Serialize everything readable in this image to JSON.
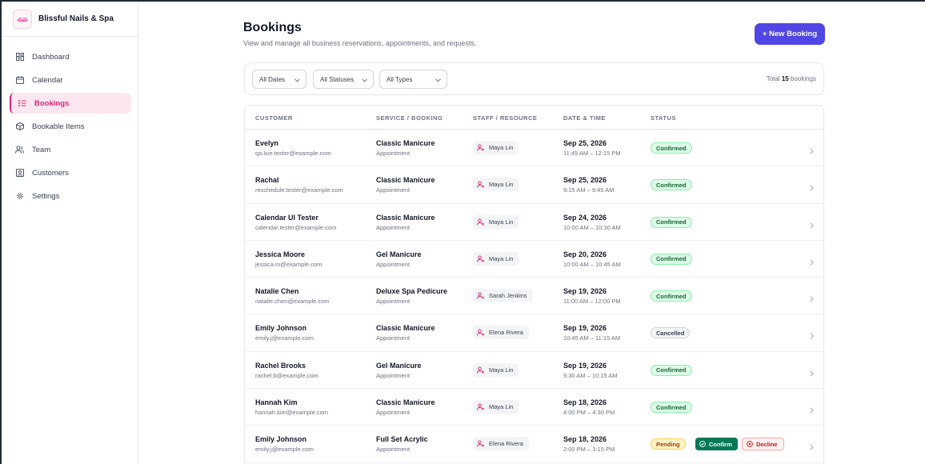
{
  "brand": {
    "name": "Blissful Nails & Spa"
  },
  "nav": [
    {
      "label": "Dashboard",
      "icon": "dashboard-icon"
    },
    {
      "label": "Calendar",
      "icon": "calendar-icon"
    },
    {
      "label": "Bookings",
      "icon": "list-icon",
      "active": true
    },
    {
      "label": "Bookable Items",
      "icon": "package-icon"
    },
    {
      "label": "Team",
      "icon": "team-icon"
    },
    {
      "label": "Customers",
      "icon": "customer-icon"
    },
    {
      "label": "Settings",
      "icon": "gear-icon"
    }
  ],
  "header": {
    "title": "Bookings",
    "subtitle": "View and manage all business reservations, appointments, and requests.",
    "new_label": "+ New Booking"
  },
  "filters": {
    "dates": "All Dates",
    "statuses": "All Statuses",
    "types": "All Types",
    "total_prefix": "Total",
    "total_count": "15",
    "total_suffix": "bookings"
  },
  "columns": [
    "CUSTOMER",
    "SERVICE / BOOKING",
    "STAFF / RESOURCE",
    "DATE & TIME",
    "STATUS"
  ],
  "rows": [
    {
      "name": "Evelyn",
      "email": "qa.live.tester@example.com",
      "service": "Classic Manicure",
      "type": "Appointment",
      "staff": "Maya Lin",
      "date": "Sep 25, 2026",
      "time": "11:45 AM – 12:15 PM",
      "status": "Confirmed"
    },
    {
      "name": "Rachal",
      "email": "reschedule.tester@example.com",
      "service": "Classic Manicure",
      "type": "Appointment",
      "staff": "Maya Lin",
      "date": "Sep 25, 2026",
      "time": "9:15 AM – 9:45 AM",
      "status": "Confirmed"
    },
    {
      "name": "Calendar UI Tester",
      "email": "calendar.tester@example.com",
      "service": "Classic Manicure",
      "type": "Appointment",
      "staff": "Maya Lin",
      "date": "Sep 24, 2026",
      "time": "10:00 AM – 10:30 AM",
      "status": "Confirmed"
    },
    {
      "name": "Jessica Moore",
      "email": "jessica.m@example.com",
      "service": "Gel Manicure",
      "type": "Appointment",
      "staff": "Maya Lin",
      "date": "Sep 20, 2026",
      "time": "10:00 AM – 10:45 AM",
      "status": "Confirmed"
    },
    {
      "name": "Natalie Chen",
      "email": "natalie.chen@example.com",
      "service": "Deluxe Spa Pedicure",
      "type": "Appointment",
      "staff": "Sarah Jenkins",
      "date": "Sep 19, 2026",
      "time": "11:00 AM – 12:00 PM",
      "status": "Confirmed"
    },
    {
      "name": "Emily Johnson",
      "email": "emily.j@example.com",
      "service": "Classic Manicure",
      "type": "Appointment",
      "staff": "Elena Rivera",
      "date": "Sep 19, 2026",
      "time": "10:45 AM – 11:15 AM",
      "status": "Cancelled"
    },
    {
      "name": "Rachel Brooks",
      "email": "rachel.b@example.com",
      "service": "Gel Manicure",
      "type": "Appointment",
      "staff": "Maya Lin",
      "date": "Sep 19, 2026",
      "time": "9:30 AM – 10:15 AM",
      "status": "Confirmed"
    },
    {
      "name": "Hannah Kim",
      "email": "hannah.kim@example.com",
      "service": "Classic Manicure",
      "type": "Appointment",
      "staff": "Maya Lin",
      "date": "Sep 18, 2026",
      "time": "4:00 PM – 4:30 PM",
      "status": "Confirmed"
    },
    {
      "name": "Emily Johnson",
      "email": "emily.j@example.com",
      "service": "Full Set Acrylic",
      "type": "Appointment",
      "staff": "Elena Rivera",
      "date": "Sep 18, 2026",
      "time": "2:00 PM – 3:15 PM",
      "status": "Pending",
      "actions": {
        "confirm": "Confirm",
        "decline": "Decline"
      }
    }
  ],
  "colors": {
    "accent": "#4f46e5",
    "brand_pink": "#db2777"
  }
}
